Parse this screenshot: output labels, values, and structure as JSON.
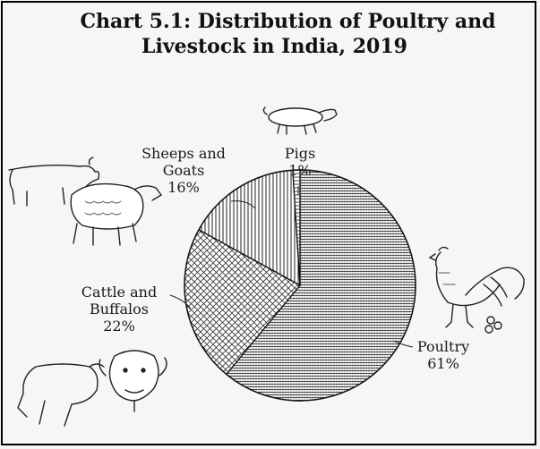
{
  "chart_data": {
    "type": "pie",
    "title": "Chart 5.1: Distribution of Poultry and",
    "title_line2": "Livestock in India, 2019",
    "slices": [
      {
        "label": "Poultry",
        "value": 61,
        "value_label": "61%"
      },
      {
        "label": "Cattle and Buffalos",
        "value": 22,
        "value_label": "22%"
      },
      {
        "label": "Sheeps and Goats",
        "value": 16,
        "value_label": "16%"
      },
      {
        "label": "Pigs",
        "value": 1,
        "value_label": "1%"
      }
    ]
  },
  "labels": {
    "poultry": {
      "l1": "Poultry",
      "l2": "61%"
    },
    "cattle": {
      "l1": "Cattle and",
      "l2": "Buffalos",
      "l3": "22%"
    },
    "sheep": {
      "l1": "Sheeps and",
      "l2": "Goats",
      "l3": "16%"
    },
    "pigs": {
      "l1": "Pigs",
      "l2": "1%"
    }
  },
  "icons": [
    "pig-icon",
    "rooster-icon",
    "goat-icon",
    "sheep-icon",
    "cattle-icon",
    "buffalo-icon"
  ]
}
